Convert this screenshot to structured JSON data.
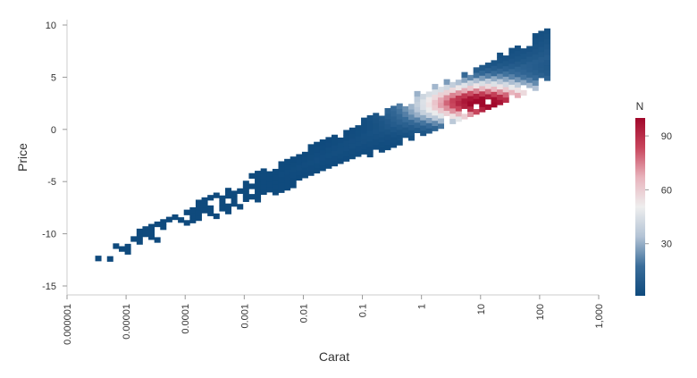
{
  "chart_data": {
    "type": "heatmap",
    "title": "",
    "xlabel": "Carat",
    "ylabel": "Price",
    "x_scale": "log",
    "x_ticks": [
      1e-06,
      1e-05,
      0.0001,
      0.001,
      0.01,
      0.1,
      1,
      10,
      100,
      1000
    ],
    "x_tick_labels": [
      "0.000001",
      "0.00001",
      "0.0001",
      "0.001",
      "0.01",
      "0.1",
      "1",
      "10",
      "100",
      "1,000"
    ],
    "xlim": [
      1e-06,
      1000
    ],
    "y_ticks": [
      10,
      5,
      0,
      -5,
      -10,
      -15
    ],
    "y_tick_labels": [
      "10",
      "5",
      "0",
      "-5",
      "-10",
      "-15"
    ],
    "ylim": [
      -15,
      10
    ],
    "grid": false,
    "colorbar": {
      "title": "N",
      "ticks": [
        30,
        60,
        90
      ],
      "tick_labels": [
        "30",
        "60",
        "90"
      ],
      "range": [
        1,
        100
      ],
      "colors": [
        "#0f4a7d",
        "#3a6d9a",
        "#b3c3d5",
        "#eeeeee",
        "#e8b3bc",
        "#c8455c",
        "#a1082b"
      ]
    },
    "density_ridge": {
      "description_values": "Counts concentrated along a band from about Carat 3e-6, Price -12.5 to Carat 150, Price 7; peak N about 100 near Carat 10, Price 2.3",
      "band_start": [
        3e-06,
        -12.5
      ],
      "band_end": [
        150,
        7
      ],
      "peak": [
        10,
        2.3
      ],
      "peak_count": 100
    }
  }
}
